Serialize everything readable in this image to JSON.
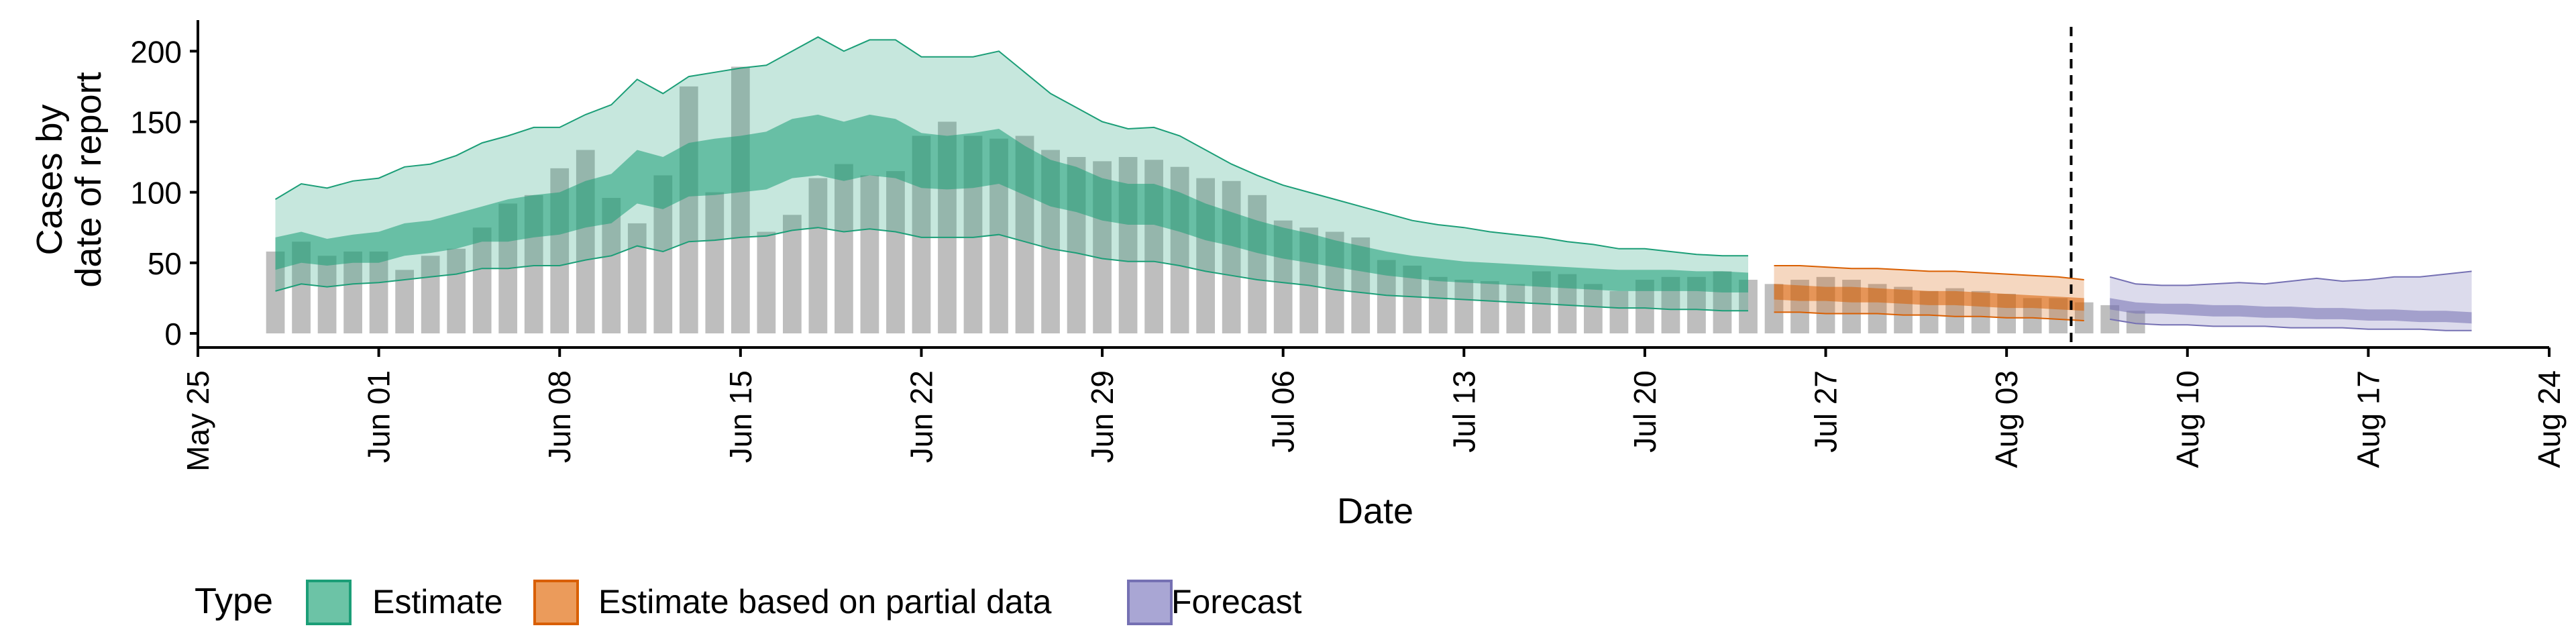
{
  "chart_data": {
    "type": "bar",
    "x_axis": {
      "label": "Date",
      "ticks": [
        "May 25",
        "Jun 01",
        "Jun 08",
        "Jun 15",
        "Jun 22",
        "Jun 29",
        "Jul 06",
        "Jul 13",
        "Jul 20",
        "Jul 27",
        "Aug 03",
        "Aug 10",
        "Aug 17",
        "Aug 24"
      ]
    },
    "y_axis": {
      "label_lines": [
        "Cases by",
        "date of report"
      ],
      "ticks": [
        0,
        50,
        100,
        150,
        200
      ],
      "range": [
        -10,
        222
      ]
    },
    "date_range_days": [
      0,
      91
    ],
    "date_day0": "May 25",
    "forecast_start_line_day": 72.5,
    "reported_cases": {
      "start_day": 3,
      "color": "#bebebe",
      "values": [
        58,
        65,
        55,
        58,
        58,
        45,
        55,
        60,
        75,
        92,
        98,
        117,
        130,
        96,
        78,
        112,
        175,
        100,
        189,
        72,
        84,
        110,
        120,
        112,
        115,
        140,
        150,
        140,
        138,
        140,
        130,
        125,
        122,
        125,
        123,
        118,
        110,
        108,
        98,
        80,
        75,
        72,
        68,
        52,
        48,
        40,
        38,
        37,
        35,
        44,
        42,
        35,
        30,
        38,
        40,
        40,
        44,
        38,
        35,
        38,
        40,
        38,
        35,
        33,
        30,
        32,
        30,
        28,
        25,
        25,
        22,
        20,
        16
      ]
    },
    "legend": {
      "title": "Type",
      "items": [
        {
          "label": "Estimate",
          "fill": "#6cc3a6",
          "stroke": "#1b9e77"
        },
        {
          "label": "Estimate based on partial data",
          "fill": "#eb9b5b",
          "stroke": "#d95f02"
        },
        {
          "label": "Forecast",
          "fill": "#a9a6d4",
          "stroke": "#7570b3"
        }
      ]
    },
    "series": [
      {
        "type": "Estimate",
        "start_day": 3,
        "outer_color": "#1b9e77",
        "inner_color": "#1b9e77",
        "upper90": [
          95,
          106,
          103,
          108,
          110,
          118,
          120,
          126,
          135,
          140,
          146,
          146,
          155,
          162,
          180,
          170,
          182,
          185,
          188,
          190,
          200,
          210,
          200,
          208,
          208,
          196,
          196,
          196,
          200,
          185,
          170,
          160,
          150,
          145,
          146,
          140,
          130,
          120,
          112,
          105,
          100,
          95,
          90,
          85,
          80,
          77,
          75,
          72,
          70,
          68,
          65,
          63,
          60,
          60,
          58,
          56,
          55,
          55
        ],
        "upper50": [
          68,
          72,
          67,
          70,
          72,
          78,
          80,
          85,
          90,
          95,
          98,
          100,
          108,
          113,
          130,
          125,
          135,
          138,
          140,
          143,
          152,
          155,
          150,
          155,
          152,
          142,
          140,
          142,
          145,
          133,
          123,
          118,
          110,
          106,
          106,
          100,
          92,
          86,
          80,
          75,
          71,
          66,
          62,
          58,
          55,
          53,
          51,
          50,
          49,
          48,
          47,
          46,
          45,
          45,
          45,
          44,
          44,
          43
        ],
        "lower50": [
          45,
          50,
          48,
          50,
          50,
          55,
          57,
          60,
          65,
          65,
          68,
          70,
          75,
          78,
          92,
          88,
          97,
          98,
          100,
          102,
          110,
          112,
          108,
          112,
          110,
          103,
          102,
          103,
          106,
          98,
          90,
          86,
          80,
          77,
          77,
          72,
          66,
          62,
          57,
          53,
          50,
          47,
          44,
          41,
          39,
          37,
          36,
          35,
          34,
          33,
          32,
          31,
          30,
          30,
          30,
          30,
          29,
          29
        ],
        "lower90": [
          30,
          35,
          33,
          35,
          36,
          38,
          40,
          42,
          46,
          46,
          48,
          48,
          52,
          55,
          62,
          58,
          65,
          66,
          68,
          69,
          73,
          75,
          72,
          74,
          72,
          68,
          68,
          68,
          70,
          65,
          60,
          57,
          53,
          51,
          51,
          48,
          44,
          41,
          38,
          36,
          34,
          31,
          29,
          27,
          26,
          25,
          24,
          23,
          22,
          21,
          20,
          19,
          18,
          18,
          17,
          17,
          16,
          16
        ]
      },
      {
        "type": "Estimate based on partial data",
        "start_day": 61,
        "outer_color": "#d95f02",
        "inner_color": "#d95f02",
        "upper90": [
          48,
          48,
          47,
          46,
          46,
          45,
          44,
          44,
          43,
          42,
          41,
          40,
          38
        ],
        "upper50": [
          35,
          34,
          33,
          33,
          32,
          31,
          30,
          30,
          29,
          28,
          27,
          26,
          25
        ],
        "lower50": [
          24,
          23,
          23,
          22,
          22,
          21,
          20,
          20,
          19,
          18,
          18,
          17,
          16
        ],
        "lower90": [
          15,
          15,
          14,
          14,
          14,
          13,
          13,
          12,
          12,
          11,
          11,
          10,
          9
        ]
      },
      {
        "type": "Forecast",
        "start_day": 74,
        "outer_color": "#7570b3",
        "inner_color": "#7570b3",
        "upper90": [
          40,
          35,
          34,
          34,
          35,
          36,
          35,
          37,
          39,
          37,
          38,
          40,
          40,
          42,
          44
        ],
        "upper50": [
          25,
          22,
          21,
          21,
          20,
          20,
          19,
          19,
          18,
          18,
          17,
          17,
          16,
          16,
          15
        ],
        "lower50": [
          17,
          14,
          14,
          13,
          12,
          12,
          11,
          11,
          10,
          10,
          9,
          9,
          8,
          8,
          7
        ],
        "lower90": [
          10,
          7,
          6,
          6,
          5,
          5,
          5,
          4,
          4,
          4,
          3,
          3,
          3,
          2,
          2
        ]
      }
    ]
  }
}
